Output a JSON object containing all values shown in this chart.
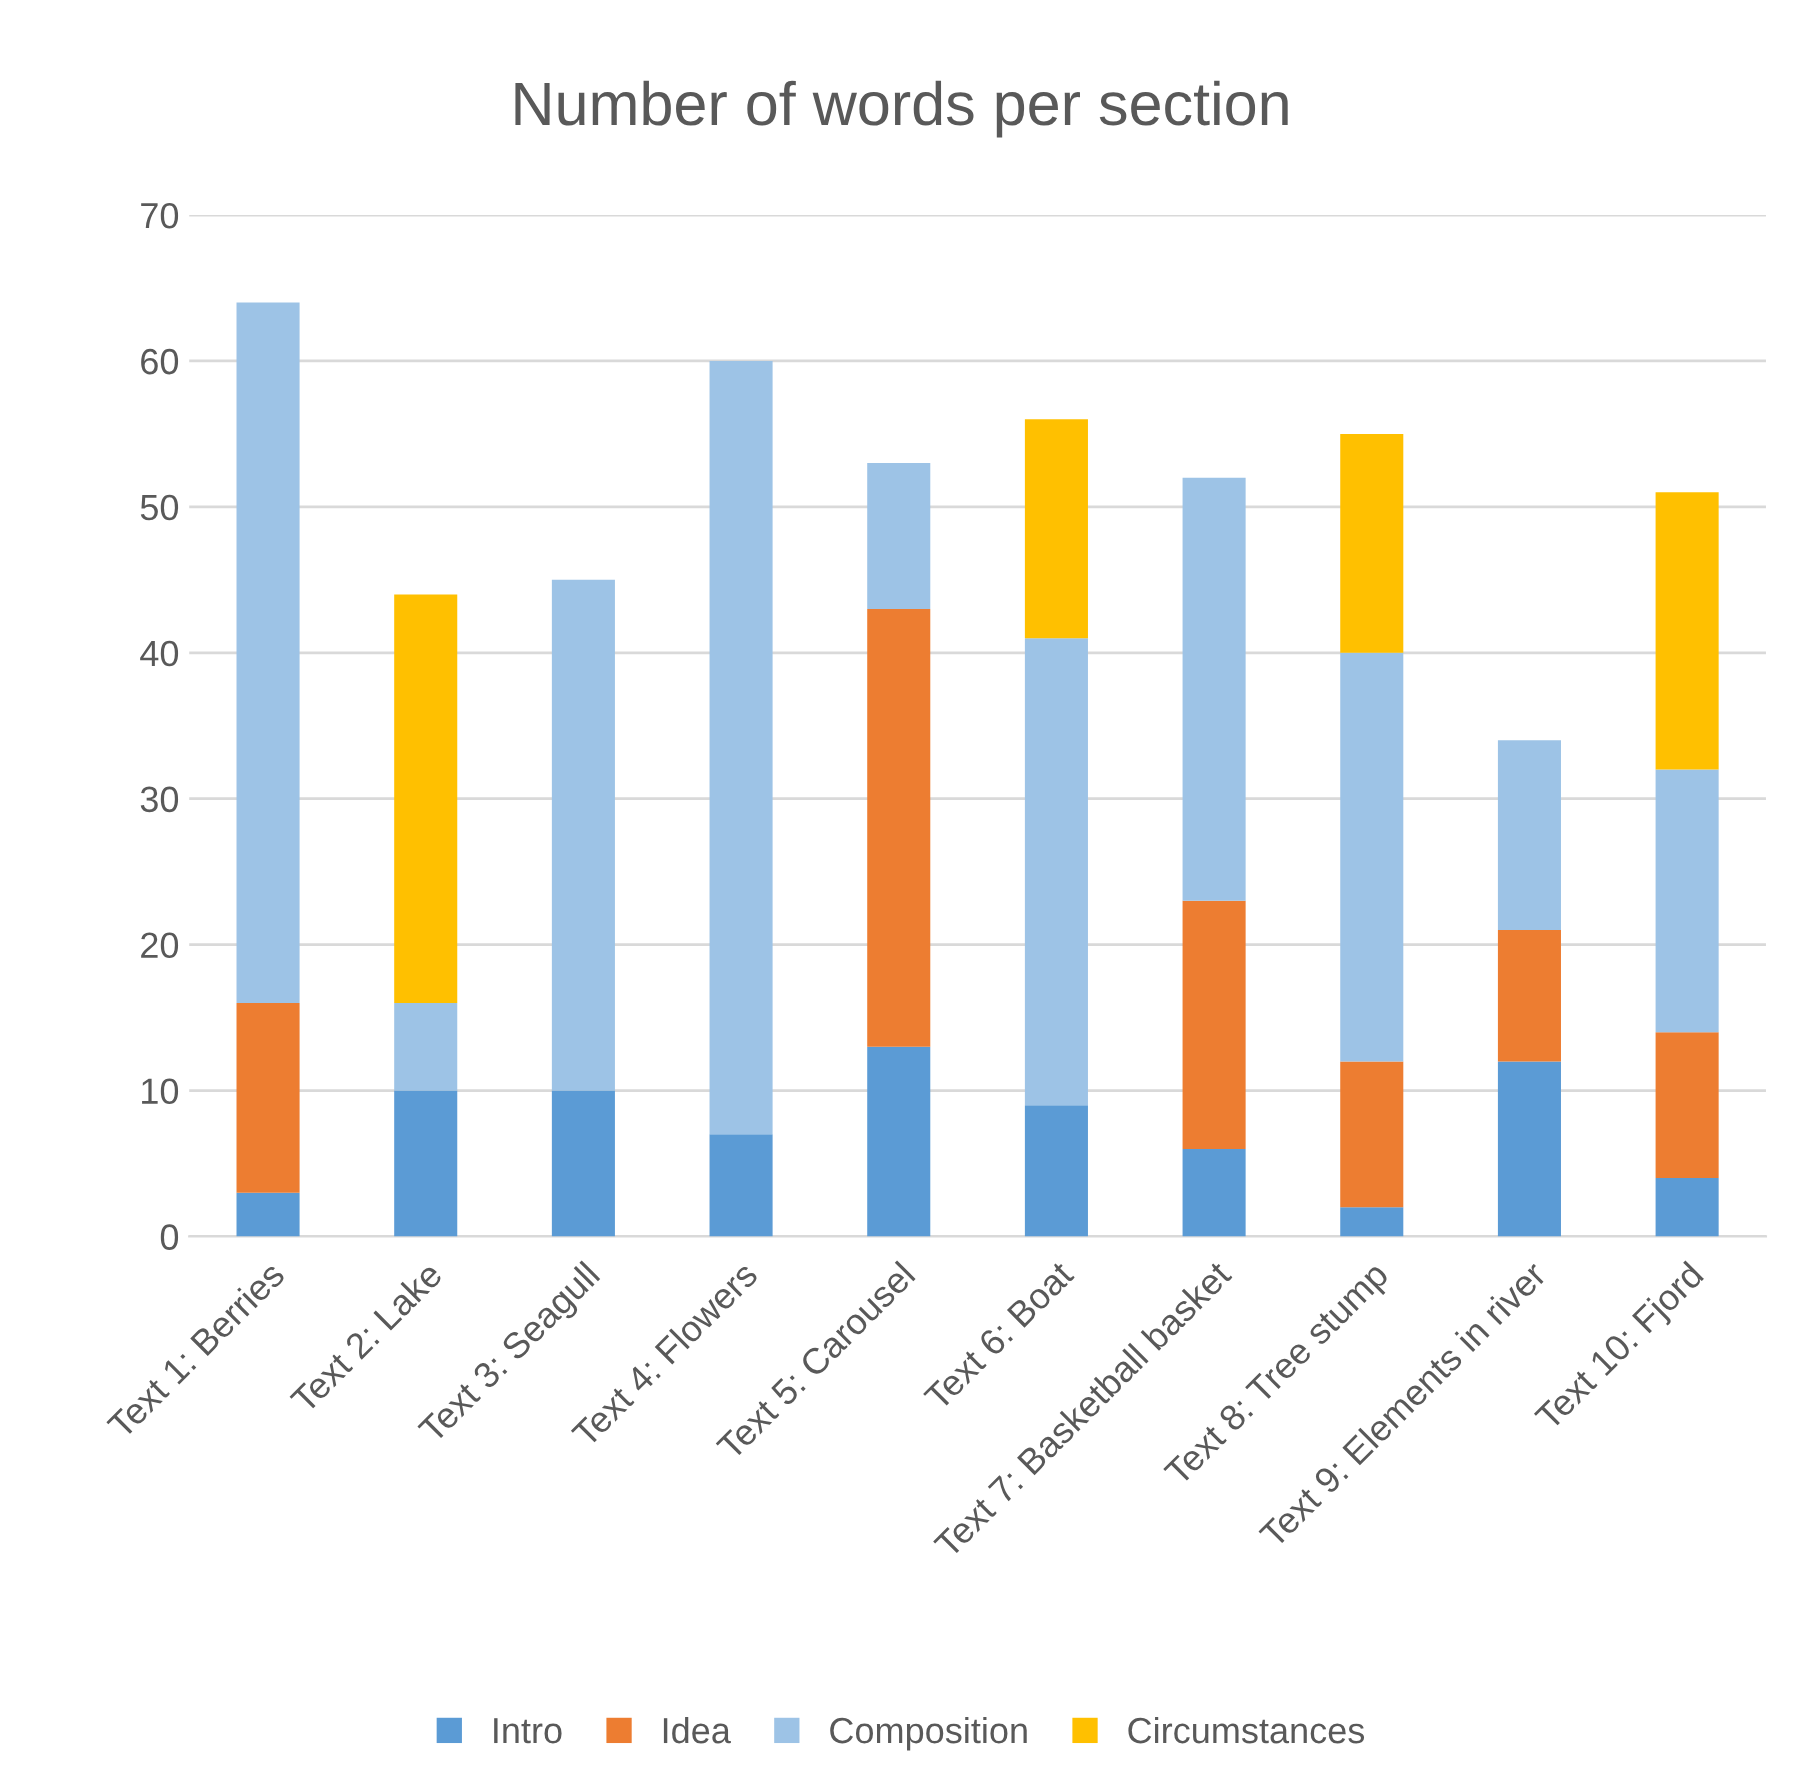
{
  "chart_data": {
    "type": "bar",
    "stacked": true,
    "title": "Number of words per section",
    "categories": [
      "Text 1: Berries",
      "Text 2: Lake",
      "Text 3: Seagull",
      "Text 4: Flowers",
      "Text 5: Carousel",
      "Text 6: Boat",
      "Text 7: Basketball basket",
      "Text 8: Tree stump",
      "Text 9: Elements in river",
      "Text 10: Fjord"
    ],
    "series": [
      {
        "name": "Intro",
        "color": "#5b9bd5",
        "values": [
          3,
          10,
          10,
          7,
          13,
          9,
          6,
          2,
          12,
          4
        ]
      },
      {
        "name": "Idea",
        "color": "#ed7d31",
        "values": [
          13,
          0,
          0,
          0,
          30,
          0,
          17,
          10,
          9,
          10
        ]
      },
      {
        "name": "Composition",
        "color": "#9dc3e6",
        "values": [
          48,
          6,
          35,
          53,
          10,
          32,
          29,
          28,
          13,
          18
        ]
      },
      {
        "name": "Circumstances",
        "color": "#ffc000",
        "values": [
          0,
          28,
          0,
          0,
          0,
          15,
          0,
          15,
          0,
          19
        ]
      }
    ],
    "ylim": [
      0,
      70
    ],
    "yticks": [
      0,
      10,
      20,
      30,
      40,
      50,
      60,
      70
    ],
    "grid": "y",
    "legend": "bottom"
  }
}
